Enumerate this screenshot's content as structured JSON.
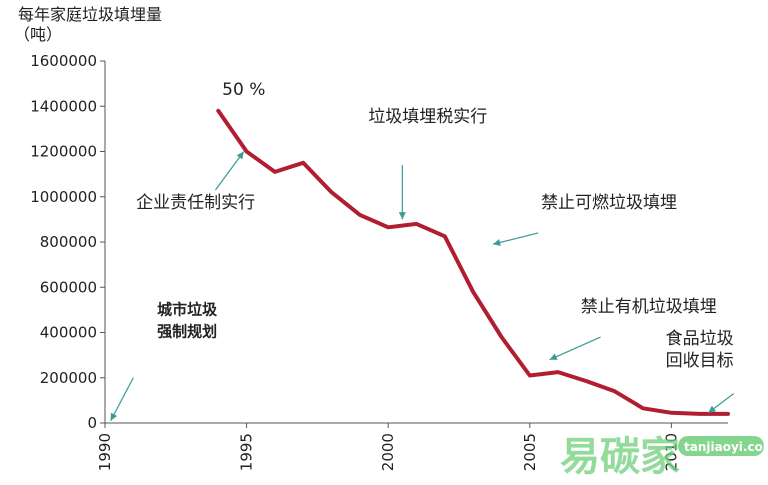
{
  "chart_data": {
    "type": "line",
    "ylabel_lines": [
      "每年家庭垃圾填埋量",
      "（吨）"
    ],
    "x": [
      1994,
      1995,
      1996,
      1997,
      1998,
      1999,
      2000,
      2001,
      2002,
      2003,
      2004,
      2005,
      2006,
      2007,
      2008,
      2009,
      2010,
      2011,
      2012
    ],
    "values": [
      1380000,
      1200000,
      1110000,
      1150000,
      1020000,
      920000,
      865000,
      880000,
      825000,
      580000,
      380000,
      210000,
      225000,
      185000,
      140000,
      65000,
      45000,
      40000,
      40000
    ],
    "xlim": [
      1990,
      2012
    ],
    "ylim": [
      0,
      1600000
    ],
    "xticks": [
      1990,
      1995,
      2000,
      2005,
      2010
    ],
    "yticks": [
      0,
      200000,
      400000,
      600000,
      800000,
      1000000,
      1200000,
      1400000,
      1600000
    ],
    "grid": false,
    "line_color": "#b01e2f",
    "arrow_color": "#3a9a96",
    "annotations": [
      {
        "lines": [
          "50 %"
        ],
        "x": 1994.9,
        "y": 1450000,
        "bold": false
      },
      {
        "lines": [
          "垃圾填埋税实行"
        ],
        "x": 2001.4,
        "y": 1330000,
        "bold": false
      },
      {
        "lines": [
          "企业责任制实行"
        ],
        "x": 1993.2,
        "y": 950000,
        "bold": false
      },
      {
        "lines": [
          "禁止可燃垃圾填埋"
        ],
        "x": 2007.8,
        "y": 950000,
        "bold": false
      },
      {
        "lines": [
          "城市垃圾",
          "强制规划"
        ],
        "x": 1992.9,
        "y": 480000,
        "bold": true
      },
      {
        "lines": [
          "禁止有机垃圾填埋"
        ],
        "x": 2009.2,
        "y": 490000,
        "bold": false
      },
      {
        "lines": [
          "食品垃圾",
          "回收目标"
        ],
        "x": 2011.0,
        "y": 350000,
        "bold": false
      }
    ],
    "arrows": [
      {
        "from": [
          1993.9,
          1030000
        ],
        "to": [
          1994.9,
          1200000
        ]
      },
      {
        "from": [
          2000.5,
          1140000
        ],
        "to": [
          2000.5,
          900000
        ]
      },
      {
        "from": [
          2005.3,
          840000
        ],
        "to": [
          2003.7,
          790000
        ]
      },
      {
        "from": [
          1991.0,
          200000
        ],
        "to": [
          1990.2,
          10000
        ]
      },
      {
        "from": [
          2007.5,
          380000
        ],
        "to": [
          2005.7,
          280000
        ]
      },
      {
        "from": [
          2012.2,
          130000
        ],
        "to": [
          2011.3,
          45000
        ]
      }
    ]
  },
  "watermark": {
    "text": "易碳家",
    "url": "tanjiaoyi.com",
    "color": "#6fcf7a"
  }
}
